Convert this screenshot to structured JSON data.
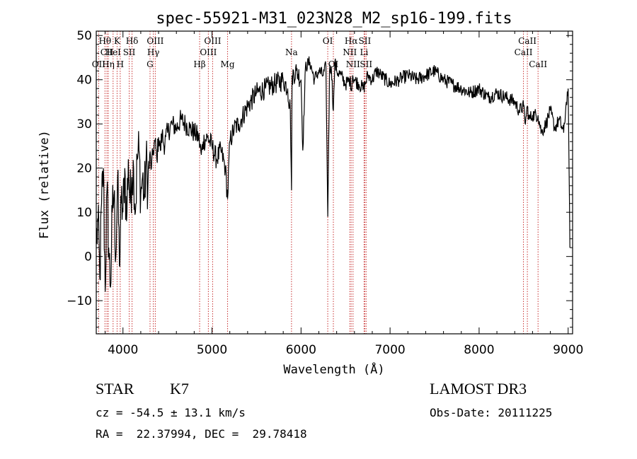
{
  "chart_data": {
    "type": "line",
    "title": "spec-55921-M31_023N28_M2_sp16-199.fits",
    "xlabel": "Wavelength (Å)",
    "ylabel": "Flux (relative)",
    "xlim": [
      3700,
      9050
    ],
    "ylim": [
      -17.5,
      51
    ],
    "x_ticks": [
      4000,
      5000,
      6000,
      7000,
      8000,
      9000
    ],
    "y_ticks": [
      -10,
      0,
      10,
      20,
      30,
      40,
      50
    ],
    "series": [
      {
        "name": "flux",
        "x": [
          3700,
          3720,
          3740,
          3760,
          3780,
          3800,
          3820,
          3840,
          3860,
          3880,
          3900,
          3920,
          3940,
          3960,
          3980,
          4000,
          4020,
          4040,
          4060,
          4080,
          4100,
          4120,
          4140,
          4160,
          4180,
          4200,
          4220,
          4240,
          4260,
          4280,
          4300,
          4320,
          4340,
          4360,
          4380,
          4400,
          4420,
          4440,
          4460,
          4480,
          4500,
          4550,
          4600,
          4650,
          4700,
          4750,
          4800,
          4850,
          4880,
          4900,
          4950,
          5000,
          5050,
          5100,
          5150,
          5175,
          5200,
          5250,
          5300,
          5400,
          5500,
          5600,
          5700,
          5800,
          5850,
          5880,
          5893,
          5900,
          5950,
          6000,
          6020,
          6050,
          6100,
          6150,
          6200,
          6250,
          6280,
          6300,
          6320,
          6340,
          6363,
          6380,
          6400,
          6450,
          6500,
          6550,
          6563,
          6580,
          6600,
          6650,
          6700,
          6720,
          6750,
          6800,
          6850,
          6900,
          6950,
          7000,
          7100,
          7200,
          7300,
          7400,
          7500,
          7600,
          7700,
          7800,
          7900,
          8000,
          8100,
          8200,
          8300,
          8400,
          8450,
          8500,
          8520,
          8542,
          8560,
          8600,
          8662,
          8700,
          8750,
          8800,
          8850,
          8900,
          8950,
          8980,
          9000,
          9010,
          9020
        ],
        "values": [
          3,
          8,
          -5,
          12,
          20,
          -8,
          15,
          2,
          -7,
          10,
          14,
          0,
          18,
          -2,
          12,
          10,
          20,
          8,
          22,
          12,
          18,
          20,
          10,
          22,
          24,
          14,
          18,
          13,
          22,
          16,
          23,
          20,
          24,
          26,
          22,
          27,
          24,
          28,
          25,
          27,
          28,
          30,
          29,
          31,
          30,
          29,
          28,
          27,
          23,
          26,
          27,
          25,
          22,
          24,
          20,
          13,
          26,
          29,
          30,
          34,
          37,
          38,
          39,
          40,
          38,
          33,
          15,
          41,
          42,
          40,
          24,
          43,
          44,
          40,
          42,
          41,
          43,
          9,
          42,
          43,
          33,
          44,
          42,
          41,
          39,
          40,
          38,
          41,
          40,
          39,
          38,
          39,
          41,
          40,
          42,
          41,
          40,
          39,
          40,
          41,
          40,
          41,
          42,
          40,
          39,
          38,
          37,
          38,
          36,
          37,
          36,
          35,
          33,
          34,
          30,
          34,
          31,
          32,
          32,
          28,
          30,
          33,
          29,
          31,
          28,
          35,
          38,
          20,
          2
        ]
      }
    ],
    "annotations": [
      {
        "label": "Hθ",
        "x": 3798,
        "row": 1
      },
      {
        "label": "CII",
        "x": 3820,
        "row": 2
      },
      {
        "label": "OII",
        "x": 3727,
        "row": 3
      },
      {
        "label": "Hη",
        "x": 3835,
        "row": 3
      },
      {
        "label": "K",
        "x": 3934,
        "row": 1
      },
      {
        "label": "HeI",
        "x": 3889,
        "row": 2
      },
      {
        "label": "H",
        "x": 3969,
        "row": 3
      },
      {
        "label": "Hδ",
        "x": 4102,
        "row": 1
      },
      {
        "label": "SII",
        "x": 4070,
        "row": 2
      },
      {
        "label": "OIII",
        "x": 4363,
        "row": 1
      },
      {
        "label": "Hγ",
        "x": 4341,
        "row": 2
      },
      {
        "label": "G",
        "x": 4304,
        "row": 3
      },
      {
        "label": "Hβ",
        "x": 4861,
        "row": 3
      },
      {
        "label": "OIII",
        "x": 5007,
        "row": 1
      },
      {
        "label": "OIII",
        "x": 4959,
        "row": 2
      },
      {
        "label": "Mg",
        "x": 5175,
        "row": 3
      },
      {
        "label": "Na",
        "x": 5893,
        "row": 2
      },
      {
        "label": "OI",
        "x": 6300,
        "row": 1
      },
      {
        "label": "OI",
        "x": 6363,
        "row": 3
      },
      {
        "label": "Hα",
        "x": 6563,
        "row": 1
      },
      {
        "label": "NII",
        "x": 6548,
        "row": 2
      },
      {
        "label": "NII",
        "x": 6584,
        "row": 3
      },
      {
        "label": "SII",
        "x": 6716,
        "row": 1
      },
      {
        "label": "Li",
        "x": 6708,
        "row": 2
      },
      {
        "label": "SII",
        "x": 6731,
        "row": 3
      },
      {
        "label": "CaII",
        "x": 8542,
        "row": 1
      },
      {
        "label": "CaII",
        "x": 8498,
        "row": 2
      },
      {
        "label": "CaII",
        "x": 8662,
        "row": 3
      }
    ]
  },
  "info": {
    "object_class": "STAR",
    "subclass": "K7",
    "survey": "LAMOST DR3",
    "cz_line": "cz = -54.5 ± 13.1 km/s",
    "obs_date_line": "Obs-Date: 20111225",
    "coords_line": "RA =  22.37994, DEC =  29.78418"
  },
  "colors": {
    "axis": "#000000",
    "spectrum": "#000000",
    "line_marker": "#c83232"
  }
}
